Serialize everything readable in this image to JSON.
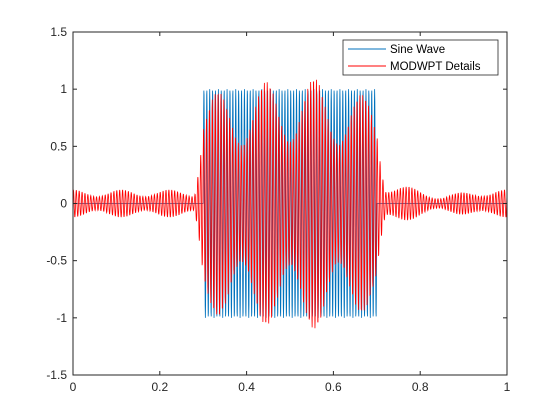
{
  "chart_data": {
    "type": "line",
    "title": "",
    "xlabel": "",
    "ylabel": "",
    "xlim": [
      0,
      1
    ],
    "ylim": [
      -1.5,
      1.5
    ],
    "x_ticks": [
      "0",
      "0.2",
      "0.4",
      "0.6",
      "0.8",
      "1"
    ],
    "y_ticks": [
      "1.5",
      "1",
      "0.5",
      "0",
      "-0.5",
      "-1",
      "-1.5"
    ],
    "grid": false,
    "legend_position": "top-right",
    "series": [
      {
        "name": "Sine Wave",
        "color": "#0072bd",
        "description_points": {
          "x": [
            0,
            0.3,
            0.3,
            0.7,
            0.7,
            1
          ],
          "y_envelope": [
            0,
            0,
            1,
            1,
            0,
            0
          ]
        }
      },
      {
        "name": "MODWPT Details",
        "color": "#ff0000",
        "description_points": {
          "x": [
            0,
            0.28,
            0.3,
            0.45,
            0.57,
            0.7,
            0.72,
            0.85,
            0.95,
            1
          ],
          "y_envelope": [
            0.12,
            0.12,
            0.95,
            1.07,
            1.1,
            0.9,
            0.2,
            0.07,
            0.13,
            0.12
          ]
        }
      }
    ]
  }
}
